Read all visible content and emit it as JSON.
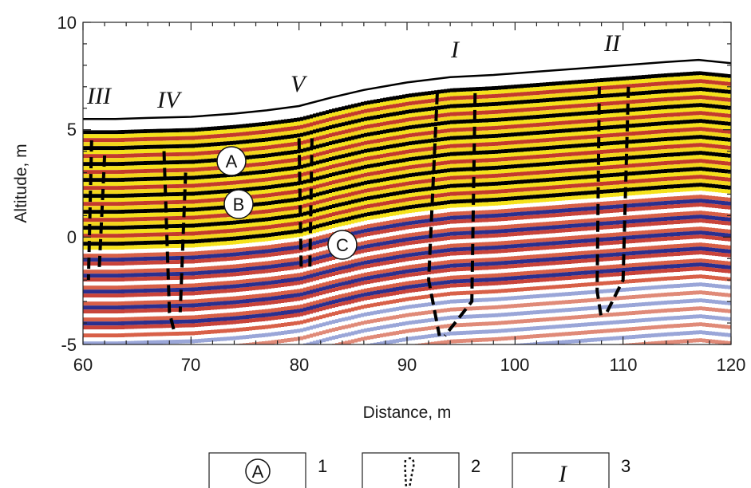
{
  "chart_data": {
    "type": "radargram",
    "xlabel": "Distance, m",
    "ylabel": "Altitude, m",
    "xlim": [
      60,
      120
    ],
    "ylim": [
      -5,
      10
    ],
    "x_ticks": [
      60,
      70,
      80,
      90,
      100,
      110,
      120
    ],
    "y_ticks": [
      -5,
      0,
      5,
      10
    ],
    "surface_line": {
      "x": [
        60,
        63,
        66,
        70,
        74,
        77,
        80,
        83,
        86,
        90,
        94,
        98,
        102,
        106,
        110,
        114,
        117,
        120
      ],
      "y": [
        5.5,
        5.5,
        5.55,
        5.6,
        5.75,
        5.9,
        6.1,
        6.5,
        6.85,
        7.2,
        7.45,
        7.55,
        7.7,
        7.85,
        8.0,
        8.15,
        8.25,
        8.1
      ]
    },
    "zone_labels": [
      {
        "label": "III",
        "x": 62,
        "y": 6.3
      },
      {
        "label": "IV",
        "x": 68.5,
        "y": 6.1
      },
      {
        "label": "V",
        "x": 80,
        "y": 6.7
      },
      {
        "label": "I",
        "x": 94,
        "y": 8.4
      },
      {
        "label": "II",
        "x": 109.5,
        "y": 8.5
      }
    ],
    "layer_labels": [
      {
        "label": "A",
        "x": 73,
        "y": 3.5
      },
      {
        "label": "B",
        "x": 74,
        "y": 1.5
      },
      {
        "label": "C",
        "x": 84,
        "y": -0.4
      }
    ],
    "fault_zones": [
      {
        "id": "III",
        "left": [
          [
            60.8,
            4.5
          ],
          [
            60.5,
            -2.0
          ]
        ],
        "right": [
          [
            62.0,
            3.8
          ],
          [
            61.5,
            -1.5
          ]
        ]
      },
      {
        "id": "IV",
        "left": [
          [
            67.5,
            4.0
          ],
          [
            68.0,
            -3.5
          ],
          [
            68.5,
            -4.5
          ]
        ],
        "right": [
          [
            69.5,
            3.0
          ],
          [
            69.0,
            -3.5
          ]
        ]
      },
      {
        "id": "V",
        "left": [
          [
            80.0,
            4.6
          ],
          [
            80.2,
            -1.5
          ]
        ],
        "right": [
          [
            81.2,
            4.6
          ],
          [
            81.0,
            -1.5
          ]
        ]
      },
      {
        "id": "I",
        "left": [
          [
            92.8,
            6.7
          ],
          [
            92.0,
            -2.0
          ],
          [
            93.0,
            -4.6
          ]
        ],
        "right": [
          [
            96.3,
            6.7
          ],
          [
            96.0,
            -3.0
          ],
          [
            93.5,
            -4.6
          ]
        ]
      },
      {
        "id": "II",
        "left": [
          [
            107.8,
            7.0
          ],
          [
            107.6,
            -2.5
          ],
          [
            108.0,
            -3.8
          ]
        ],
        "right": [
          [
            110.5,
            7.0
          ],
          [
            110.0,
            -2.0
          ],
          [
            108.5,
            -3.5
          ]
        ]
      }
    ]
  },
  "legend": [
    {
      "symbol": "A",
      "number": "1"
    },
    {
      "symbol": "",
      "number": "2"
    },
    {
      "symbol": "I",
      "number": "3"
    }
  ]
}
